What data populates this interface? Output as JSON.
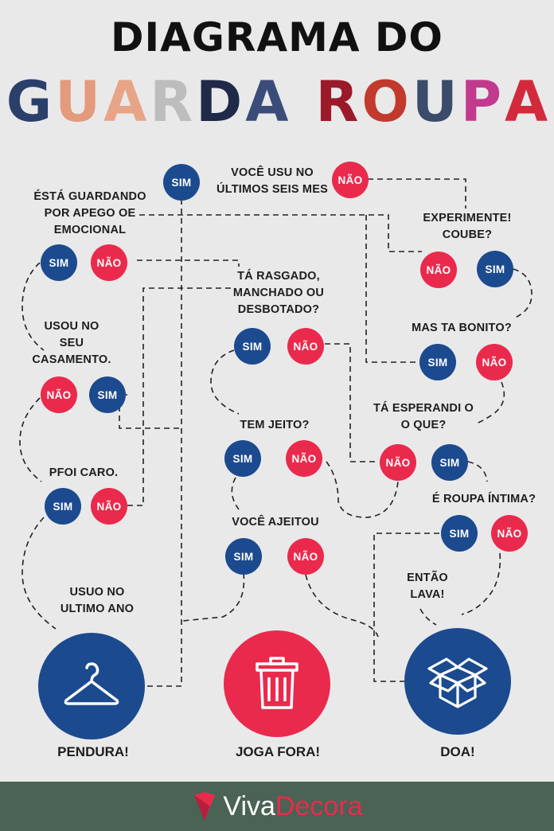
{
  "title": "DIAGRAMA DO",
  "subtitle": "GUARDA ROUPA",
  "subtitle_colors": [
    "#2b3f6b",
    "#e39a7d",
    "#e8a487",
    "#bdbdbd",
    "#1e2a47",
    "#3a4d7a",
    "#9b1a2a",
    "#c23a2e",
    "#3b4b6a",
    "#c23a8e",
    "#d22a3c"
  ],
  "colors": {
    "sim": "#1c4a8f",
    "nao": "#ea2a4c",
    "line": "#222222",
    "footer": "#4a6355"
  },
  "questions": {
    "q1": "VOCÊ USU NO\nÚLTIMOS SEIS MES",
    "q2": "ÉSTÁ GUARDANDO\nPOR APEGO OE\nEMOCIONAL",
    "q3": "EXPERIMENTE!\nCOUBE?",
    "q4": "TÁ RASGADO,\nMANCHADO OU\nDESBOTADO?",
    "q5": "MAS TA BONITO?",
    "q6": "USOU NO\nSEU\nCASAMENTO.",
    "q7": "TÁ ESPERANDI O\nO QUE?",
    "q8": "TEM JEITO?",
    "q9": "PFOI CARO.",
    "q10": "É ROUPA ÍNTIMA?",
    "q11": "VOCÊ AJEITOU",
    "q12": "ENTÃO\nLAVA!",
    "q13": "USUO NO\nULTIMO ANO"
  },
  "answers": {
    "sim": "SIM",
    "nao": "NÃO"
  },
  "outcomes": {
    "hang": {
      "label": "PENDURA!",
      "icon": "hanger-icon"
    },
    "trash": {
      "label": "JOGA FORA!",
      "icon": "trash-icon"
    },
    "donate": {
      "label": "DOA!",
      "icon": "box-icon"
    }
  },
  "footer": {
    "brand_part1": "Viva",
    "brand_part2": "Decora",
    "logo": "vivadecora-logo"
  }
}
